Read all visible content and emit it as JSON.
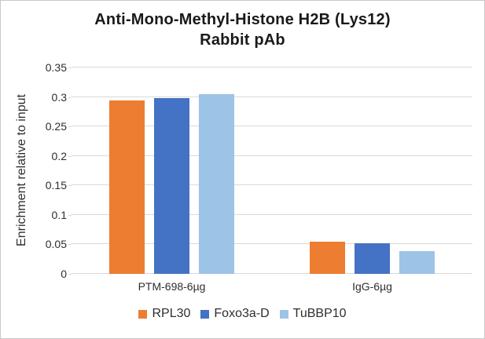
{
  "chart_data": {
    "type": "bar",
    "title": "Anti-Mono-Methyl-Histone H2B (Lys12)",
    "subtitle": "Rabbit pAb",
    "ylabel": "Enrichment relative to input",
    "xlabel": "",
    "ylim": [
      0,
      0.35
    ],
    "ytick_step": 0.05,
    "yticks": [
      "0",
      "0.05",
      "0.1",
      "0.15",
      "0.2",
      "0.25",
      "0.3",
      "0.35"
    ],
    "grid": true,
    "legend_position": "bottom",
    "categories": [
      "PTM-698-6µg",
      "IgG-6µg"
    ],
    "series": [
      {
        "name": "RPL30",
        "color": "#ED7D31",
        "values": [
          0.294,
          0.055
        ]
      },
      {
        "name": "Foxo3a-D",
        "color": "#4472C4",
        "values": [
          0.298,
          0.052
        ]
      },
      {
        "name": "TuBBP10",
        "color": "#9DC3E6",
        "values": [
          0.305,
          0.039
        ]
      }
    ]
  }
}
